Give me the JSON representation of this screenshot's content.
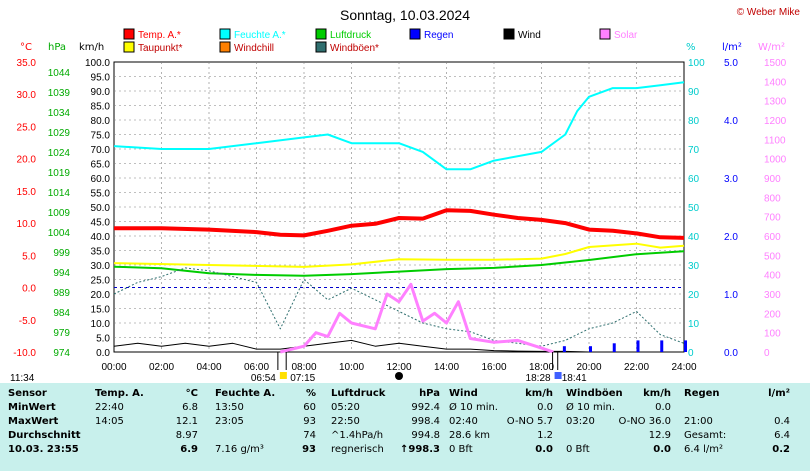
{
  "title": "Sonntag, 10.03.2024",
  "copyright": "© Weber Mike",
  "colors": {
    "temp": "#ff0000",
    "taupunkt": "#ffff00",
    "feuchte": "#00ffff",
    "windchill": "#ff8000",
    "luftdruck": "#00cc00",
    "windboeen": "#2f6f6f",
    "regen": "#0000ff",
    "wind": "#000000",
    "solar": "#ff80ff",
    "gridline": "#808080",
    "stats_bg": "#c8f0ec"
  },
  "axes": {
    "temp_unit": "°C",
    "hpa_unit": "hPa",
    "kmh_unit": "km/h",
    "pct_unit": "%",
    "rain_unit": "l/m²",
    "solar_unit": "W/m²",
    "temp_ticks": [
      "35.0",
      "30.0",
      "25.0",
      "20.0",
      "15.0",
      "10.0",
      "5.0",
      "0.0",
      "-5.0",
      "-10.0"
    ],
    "hpa_ticks": [
      "1044",
      "1039",
      "1034",
      "1029",
      "1024",
      "1019",
      "1014",
      "1009",
      "1004",
      "999",
      "994",
      "989",
      "984",
      "979",
      "974"
    ],
    "kmh_ticks": [
      "100.0",
      "95.0",
      "90.0",
      "85.0",
      "80.0",
      "75.0",
      "70.0",
      "65.0",
      "60.0",
      "55.0",
      "50.0",
      "45.0",
      "40.0",
      "35.0",
      "30.0",
      "25.0",
      "20.0",
      "15.0",
      "10.0",
      "5.0",
      "0.0"
    ],
    "pct_ticks": [
      "100",
      "90",
      "80",
      "70",
      "60",
      "50",
      "40",
      "30",
      "20",
      "10",
      "0"
    ],
    "rain_ticks": [
      "5.0",
      "4.0",
      "3.0",
      "2.0",
      "1.0",
      "0.0"
    ],
    "solar_ticks": [
      "1500",
      "1400",
      "1300",
      "1200",
      "1100",
      "1000",
      "900",
      "800",
      "700",
      "600",
      "500",
      "400",
      "300",
      "200",
      "100",
      "0"
    ],
    "x_ticks": [
      "00:00",
      "02:00",
      "04:00",
      "06:00",
      "08:00",
      "10:00",
      "12:00",
      "14:00",
      "16:00",
      "18:00",
      "20:00",
      "22:00",
      "24:00"
    ]
  },
  "legend": [
    {
      "label": "Temp. A.*",
      "color": "#ff0000"
    },
    {
      "label": "Feuchte A.*",
      "color": "#00ffff"
    },
    {
      "label": "Luftdruck",
      "color": "#00cc00"
    },
    {
      "label": "Regen",
      "color": "#0000ff"
    },
    {
      "label": "Wind",
      "color": "#000000"
    },
    {
      "label": "Solar",
      "color": "#ff80ff"
    },
    {
      "label": "Taupunkt*",
      "color": "#ffff00"
    },
    {
      "label": "Windchill",
      "color": "#ff8000"
    },
    {
      "label": "Windböen*",
      "color": "#2f6f6f"
    }
  ],
  "sun_markers": {
    "now": "11:34",
    "sunrise": "06:54",
    "sunrise_end": "07:15",
    "sunset": "18:28",
    "sunset_end": "18:41"
  },
  "chart_data": {
    "type": "line",
    "xlabel": "",
    "x_range": [
      0,
      24
    ],
    "series": [
      {
        "name": "Temp. A.*",
        "axis": "°C",
        "values": [
          [
            0,
            9.2
          ],
          [
            2,
            9.2
          ],
          [
            4,
            9.0
          ],
          [
            6,
            8.6
          ],
          [
            7,
            8.2
          ],
          [
            8,
            8.1
          ],
          [
            9,
            8.8
          ],
          [
            10,
            9.6
          ],
          [
            11,
            9.9
          ],
          [
            12,
            10.8
          ],
          [
            13,
            10.7
          ],
          [
            14,
            12.0
          ],
          [
            15,
            11.9
          ],
          [
            16,
            11.3
          ],
          [
            17,
            10.8
          ],
          [
            18,
            10.5
          ],
          [
            19,
            10.0
          ],
          [
            20,
            9.0
          ],
          [
            21,
            8.8
          ],
          [
            22,
            8.4
          ],
          [
            23,
            7.8
          ],
          [
            24,
            7.7
          ]
        ]
      },
      {
        "name": "Taupunkt*",
        "axis": "°C",
        "values": [
          [
            0,
            3.8
          ],
          [
            4,
            3.5
          ],
          [
            8,
            3.2
          ],
          [
            10,
            3.6
          ],
          [
            12,
            4.4
          ],
          [
            14,
            4.3
          ],
          [
            16,
            4.3
          ],
          [
            18,
            4.5
          ],
          [
            19,
            5.2
          ],
          [
            20,
            6.3
          ],
          [
            22,
            6.8
          ],
          [
            23,
            6.2
          ],
          [
            24,
            6.5
          ]
        ]
      },
      {
        "name": "Feuchte A.*",
        "axis": "%",
        "values": [
          [
            0,
            71
          ],
          [
            2,
            70
          ],
          [
            4,
            70
          ],
          [
            6,
            72
          ],
          [
            8,
            74
          ],
          [
            9,
            75
          ],
          [
            10,
            72
          ],
          [
            12,
            72
          ],
          [
            13,
            69
          ],
          [
            14,
            63
          ],
          [
            15,
            63
          ],
          [
            16,
            66
          ],
          [
            18,
            69
          ],
          [
            19,
            75
          ],
          [
            19.5,
            83
          ],
          [
            20,
            88
          ],
          [
            21,
            91
          ],
          [
            22,
            91
          ],
          [
            23,
            92
          ],
          [
            24,
            93
          ]
        ]
      },
      {
        "name": "Luftdruck",
        "axis": "hPa",
        "values": [
          [
            0,
            994.6
          ],
          [
            2,
            994.2
          ],
          [
            4,
            993.0
          ],
          [
            6,
            992.6
          ],
          [
            8,
            992.4
          ],
          [
            10,
            992.8
          ],
          [
            12,
            993.4
          ],
          [
            14,
            994.0
          ],
          [
            16,
            994.3
          ],
          [
            18,
            995.0
          ],
          [
            20,
            996.2
          ],
          [
            22,
            997.6
          ],
          [
            24,
            998.3
          ]
        ]
      },
      {
        "name": "Wind",
        "axis": "km/h",
        "values": [
          [
            0,
            2
          ],
          [
            1,
            3
          ],
          [
            2,
            2
          ],
          [
            3,
            3
          ],
          [
            4,
            2
          ],
          [
            5,
            3
          ],
          [
            6,
            1
          ],
          [
            7,
            1
          ],
          [
            8,
            2
          ],
          [
            9,
            3
          ],
          [
            10,
            4
          ],
          [
            11,
            2
          ],
          [
            12,
            3
          ],
          [
            13,
            2
          ],
          [
            14,
            1
          ],
          [
            15,
            1
          ],
          [
            16,
            0.5
          ],
          [
            17,
            0.3
          ],
          [
            18,
            0.2
          ],
          [
            19,
            0.2
          ],
          [
            20,
            0
          ],
          [
            24,
            0
          ]
        ]
      },
      {
        "name": "Windböen*",
        "axis": "km/h",
        "values": [
          [
            0,
            20
          ],
          [
            1,
            24
          ],
          [
            2,
            26
          ],
          [
            3,
            29
          ],
          [
            4,
            28
          ],
          [
            5,
            26
          ],
          [
            6,
            24
          ],
          [
            7,
            8
          ],
          [
            8,
            25
          ],
          [
            9,
            18
          ],
          [
            10,
            22
          ],
          [
            11,
            18
          ],
          [
            12,
            14
          ],
          [
            13,
            10
          ],
          [
            14,
            8
          ],
          [
            15,
            7
          ],
          [
            16,
            4
          ],
          [
            17,
            3
          ],
          [
            18,
            2
          ],
          [
            19,
            4
          ],
          [
            20,
            8
          ],
          [
            21,
            10
          ],
          [
            22,
            14
          ],
          [
            23,
            6
          ],
          [
            24,
            3
          ]
        ]
      },
      {
        "name": "Solar",
        "axis": "W/m²",
        "values": [
          [
            7,
            0
          ],
          [
            8,
            30
          ],
          [
            8.5,
            100
          ],
          [
            9,
            80
          ],
          [
            9.5,
            200
          ],
          [
            10,
            150
          ],
          [
            11,
            120
          ],
          [
            11.5,
            300
          ],
          [
            12,
            260
          ],
          [
            12.5,
            350
          ],
          [
            13,
            160
          ],
          [
            13.5,
            200
          ],
          [
            14,
            150
          ],
          [
            14.5,
            260
          ],
          [
            15,
            70
          ],
          [
            16,
            50
          ],
          [
            17,
            60
          ],
          [
            18,
            20
          ],
          [
            18.5,
            0
          ]
        ]
      },
      {
        "name": "Regen",
        "axis": "l/m²",
        "values": [
          [
            18.9,
            0.1
          ],
          [
            20,
            0.1
          ],
          [
            21,
            0.15
          ],
          [
            22,
            0.2
          ],
          [
            23,
            0.2
          ],
          [
            24,
            0.2
          ]
        ]
      }
    ]
  },
  "stats": {
    "header": [
      "Sensor",
      "Temp. A.",
      "°C",
      "Feuchte A.",
      "%",
      "Luftdruck",
      "hPa",
      "Wind",
      "km/h",
      "Windböen",
      "km/h",
      "Regen",
      "l/m²"
    ],
    "rows": [
      [
        "MinWert",
        "22:40",
        "6.8",
        "13:50",
        "60",
        "05:20",
        "992.4",
        "Ø 10 min.",
        "0.0",
        "Ø 10 min.",
        "0.0",
        "",
        ""
      ],
      [
        "MaxWert",
        "14:05",
        "12.1",
        "23:05",
        "93",
        "22:50",
        "998.4",
        "02:40",
        "O-NO 5.7",
        "03:20",
        "O-NO 36.0",
        "21:00",
        "0.4"
      ],
      [
        "Durchschnitt",
        "",
        "8.97",
        "",
        "74",
        "^1.4hPa/h",
        "994.8",
        "28.6 km",
        "1.2",
        "",
        "12.9",
        "Gesamt:",
        "6.4"
      ],
      [
        "10.03. 23:55",
        "",
        "6.9",
        "7.16 g/m³",
        "93",
        "regnerisch",
        "↑998.3",
        "0 Bft",
        "0.0",
        "0 Bft",
        "0.0",
        "6.4 l/m²",
        "0.2"
      ]
    ]
  }
}
